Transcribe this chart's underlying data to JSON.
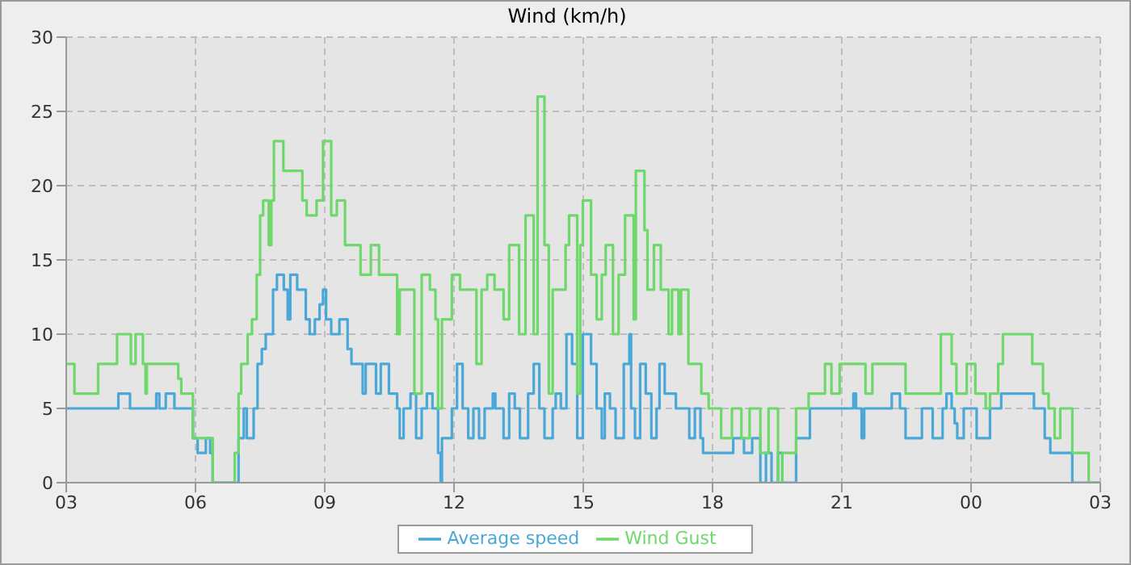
{
  "chart_data": {
    "type": "step",
    "title": "Wind (km/h)",
    "xlim": [
      3,
      27
    ],
    "xticks": [
      {
        "value": 3,
        "label": "03"
      },
      {
        "value": 6,
        "label": "06"
      },
      {
        "value": 9,
        "label": "09"
      },
      {
        "value": 12,
        "label": "12"
      },
      {
        "value": 15,
        "label": "15"
      },
      {
        "value": 18,
        "label": "18"
      },
      {
        "value": 21,
        "label": "21"
      },
      {
        "value": 24,
        "label": "00"
      },
      {
        "value": 27,
        "label": "03"
      }
    ],
    "ylim": [
      0,
      30
    ],
    "yticks": [
      0,
      5,
      10,
      15,
      20,
      25,
      30
    ],
    "grid": true,
    "legend": "bottom",
    "marker": "none",
    "line_style": "solid",
    "series": [
      {
        "name": "Average speed",
        "color": "#4aa8d8",
        "x": [
          3,
          4.21,
          4.48,
          5.09,
          5.16,
          5.31,
          5.51,
          5.94,
          6.05,
          6.24,
          6.34,
          6.4,
          7.0,
          7.12,
          7.19,
          7.35,
          7.44,
          7.54,
          7.63,
          7.8,
          7.89,
          8.05,
          8.14,
          8.2,
          8.36,
          8.56,
          8.65,
          8.77,
          8.88,
          8.96,
          9.03,
          9.15,
          9.34,
          9.53,
          9.62,
          9.88,
          9.95,
          10.19,
          10.3,
          10.49,
          10.68,
          10.74,
          10.83,
          10.99,
          11.12,
          11.25,
          11.37,
          11.5,
          11.63,
          11.69,
          11.72,
          11.95,
          12.07,
          12.2,
          12.33,
          12.45,
          12.58,
          12.71,
          12.9,
          12.96,
          13.15,
          13.28,
          13.41,
          13.53,
          13.72,
          13.85,
          13.98,
          14.1,
          14.29,
          14.36,
          14.48,
          14.61,
          14.74,
          14.86,
          14.99,
          15.12,
          15.18,
          15.31,
          15.43,
          15.5,
          15.62,
          15.75,
          15.94,
          16.07,
          16.11,
          16.2,
          16.32,
          16.45,
          16.58,
          16.7,
          16.77,
          16.89,
          17.15,
          17.46,
          17.59,
          17.72,
          17.78,
          18.48,
          18.73,
          18.92,
          19.11,
          19.24,
          19.37,
          19.52,
          19.62,
          19.94,
          20.26,
          21.27,
          21.33,
          21.46,
          21.52,
          22.16,
          22.35,
          22.48,
          22.86,
          23.11,
          23.34,
          23.43,
          23.55,
          23.62,
          23.68,
          23.83,
          24.13,
          24.44,
          24.7,
          25.46,
          25.71,
          25.84,
          26.35,
          27
        ],
        "values": [
          5,
          6,
          5,
          6,
          5,
          6,
          5,
          3,
          2,
          3,
          2,
          0,
          3,
          5,
          3,
          5,
          8,
          9,
          10,
          13,
          14,
          13,
          11,
          14,
          13,
          11,
          10,
          11,
          12,
          13,
          11,
          10,
          11,
          9,
          8,
          6,
          8,
          6,
          8,
          6,
          5,
          3,
          5,
          6,
          3,
          5,
          6,
          5,
          2,
          0,
          3,
          5,
          8,
          5,
          3,
          5,
          3,
          5,
          6,
          5,
          3,
          6,
          5,
          3,
          6,
          8,
          5,
          3,
          5,
          6,
          5,
          10,
          8,
          3,
          10,
          10,
          8,
          5,
          3,
          6,
          5,
          3,
          8,
          10,
          5,
          3,
          8,
          6,
          3,
          5,
          8,
          6,
          5,
          3,
          5,
          3,
          2,
          3,
          2,
          3,
          0,
          2,
          0,
          2,
          0,
          3,
          5,
          6,
          5,
          3,
          5,
          6,
          5,
          3,
          5,
          3,
          5,
          6,
          5,
          4,
          3,
          5,
          3,
          5,
          6,
          5,
          3,
          2,
          0,
          0
        ]
      },
      {
        "name": "Wind Gust",
        "color": "#6ed86a",
        "x": [
          3,
          3.19,
          3.74,
          4.18,
          4.5,
          4.61,
          4.78,
          4.84,
          4.87,
          5.6,
          5.67,
          5.94,
          6.4,
          6.91,
          7.0,
          7.06,
          7.21,
          7.31,
          7.42,
          7.5,
          7.57,
          7.7,
          7.76,
          7.82,
          8.04,
          8.48,
          8.58,
          8.81,
          8.96,
          9.15,
          9.28,
          9.47,
          9.83,
          10.07,
          10.26,
          10.68,
          10.74,
          11.08,
          11.25,
          11.44,
          11.57,
          11.63,
          11.72,
          11.95,
          12.14,
          12.52,
          12.64,
          12.77,
          12.94,
          13.15,
          13.28,
          13.51,
          13.66,
          13.85,
          13.94,
          14.1,
          14.2,
          14.29,
          14.59,
          14.67,
          14.86,
          14.93,
          14.99,
          15.18,
          15.31,
          15.43,
          15.52,
          15.69,
          15.82,
          15.97,
          16.17,
          16.22,
          16.42,
          16.49,
          16.64,
          16.8,
          16.98,
          17.06,
          17.21,
          17.27,
          17.44,
          17.74,
          17.91,
          18.2,
          18.45,
          18.67,
          18.86,
          19.11,
          19.3,
          19.52,
          19.62,
          19.94,
          20.23,
          20.61,
          20.76,
          20.95,
          21.55,
          21.71,
          22.48,
          23.3,
          23.55,
          23.66,
          23.9,
          24.1,
          24.34,
          24.44,
          24.63,
          24.74,
          25.42,
          25.67,
          25.8,
          25.94,
          26.07,
          26.35,
          26.73,
          27
        ],
        "values": [
          8,
          6,
          8,
          10,
          8,
          10,
          8,
          6,
          8,
          7,
          6,
          3,
          0,
          2,
          6,
          8,
          10,
          11,
          14,
          18,
          19,
          16,
          19,
          23,
          21,
          19,
          18,
          19,
          23,
          18,
          19,
          16,
          14,
          16,
          14,
          10,
          13,
          6,
          14,
          13,
          11,
          5,
          11,
          14,
          13,
          8,
          13,
          14,
          13,
          11,
          16,
          10,
          18,
          10,
          26,
          16,
          6,
          13,
          16,
          18,
          6,
          16,
          19,
          14,
          11,
          14,
          16,
          10,
          14,
          18,
          11,
          21,
          17,
          13,
          16,
          13,
          10,
          13,
          10,
          13,
          8,
          6,
          5,
          3,
          5,
          3,
          5,
          2,
          5,
          0,
          2,
          5,
          6,
          8,
          6,
          8,
          6,
          8,
          6,
          10,
          8,
          6,
          8,
          6,
          5,
          6,
          8,
          10,
          8,
          6,
          5,
          3,
          5,
          2,
          0,
          0
        ]
      }
    ]
  }
}
